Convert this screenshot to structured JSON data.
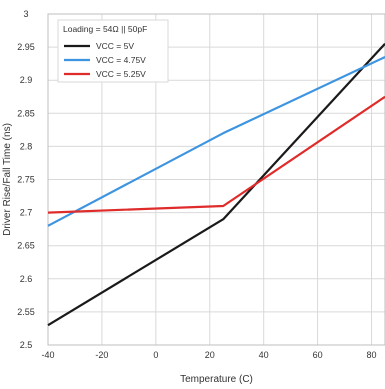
{
  "chart_data": {
    "type": "line",
    "title": "",
    "xlabel": "Temperature (C)",
    "ylabel": "Driver Rise/Fall Time (ns)",
    "xlim": [
      -40,
      85
    ],
    "ylim": [
      2.5,
      3.0
    ],
    "xticks": [
      -40,
      -20,
      0,
      20,
      40,
      60,
      80
    ],
    "xtick_labels": [
      "-40",
      "-20",
      "0",
      "20",
      "40",
      "60",
      "80"
    ],
    "yticks": [
      2.5,
      2.55,
      2.6,
      2.65,
      2.7,
      2.75,
      2.8,
      2.85,
      2.9,
      2.95,
      3.0
    ],
    "ytick_labels": [
      "2.5",
      "2.55",
      "2.6",
      "2.65",
      "2.7",
      "2.75",
      "2.8",
      "2.85",
      "2.9",
      "2.95",
      "3"
    ],
    "grid": true,
    "legend_title": "Loading = 54Ω || 50pF",
    "legend_position": "top-left",
    "series": [
      {
        "name": "VCC = 5V",
        "color": "#1a1a1a",
        "x": [
          -40,
          25,
          85
        ],
        "y": [
          2.53,
          2.69,
          2.955
        ]
      },
      {
        "name": "VCC = 4.75V",
        "color": "#3d94e0",
        "x": [
          -40,
          25,
          85
        ],
        "y": [
          2.68,
          2.82,
          2.935
        ]
      },
      {
        "name": "VCC = 5.25V",
        "color": "#e02b2b",
        "x": [
          -40,
          25,
          85
        ],
        "y": [
          2.7,
          2.71,
          2.875
        ]
      }
    ]
  }
}
